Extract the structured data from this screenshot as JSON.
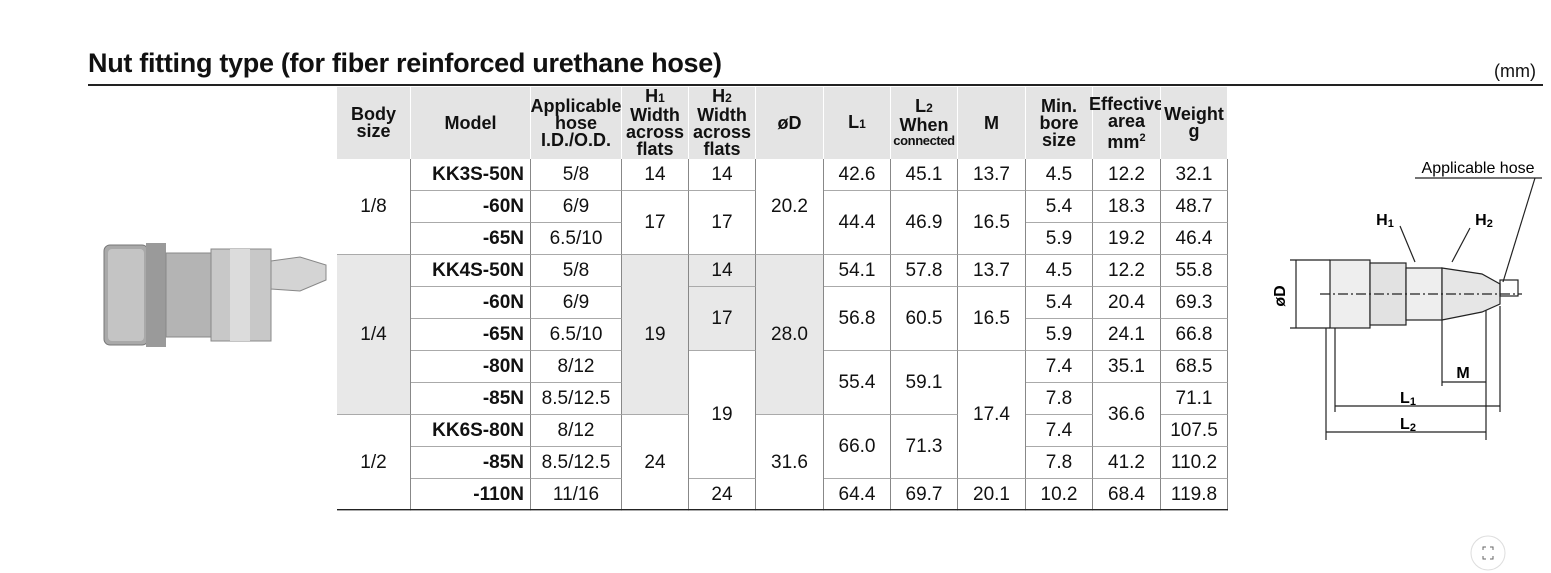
{
  "title": "Nut fitting type (for fiber reinforced urethane hose)",
  "unit": "(mm)",
  "table": {
    "header": [
      {
        "lines": [
          "Body",
          "size"
        ]
      },
      {
        "lines": [
          "Model"
        ]
      },
      {
        "lines": [
          "Applicable",
          "hose",
          "I.D./O.D."
        ]
      },
      {
        "symbol": "H",
        "index": "1",
        "lines": [
          "Width",
          "across",
          "flats"
        ]
      },
      {
        "symbol": "H",
        "index": "2",
        "lines": [
          "Width",
          "across",
          "flats"
        ]
      },
      {
        "lines": [
          "øD"
        ]
      },
      {
        "symbol": "L",
        "index": "1"
      },
      {
        "symbol": "L",
        "index": "2",
        "lines": [
          "When",
          "connected"
        ]
      },
      {
        "lines": [
          "M"
        ]
      },
      {
        "lines": [
          "Min.",
          "bore",
          "size"
        ]
      },
      {
        "lines": [
          "Effective",
          "area"
        ],
        "unit": "mm",
        "power": "2"
      },
      {
        "lines": [
          "Weight",
          "g"
        ]
      }
    ],
    "rows": [
      [
        "1/8",
        "KK3S-50N",
        "5/8",
        "14",
        "14",
        "20.2",
        "42.6",
        "45.1",
        "13.7",
        "4.5",
        "12.2",
        "32.1"
      ],
      [
        "-60N",
        "6/9",
        "17",
        "17",
        "44.4",
        "46.9",
        "16.5",
        "5.4",
        "18.3",
        "48.7"
      ],
      [
        "-65N",
        "6.5/10",
        "5.9",
        "19.2",
        "46.4"
      ],
      [
        "1/4",
        "KK4S-50N",
        "5/8",
        "19",
        "14",
        "28.0",
        "54.1",
        "57.8",
        "13.7",
        "4.5",
        "12.2",
        "55.8"
      ],
      [
        "-60N",
        "6/9",
        "17",
        "56.8",
        "60.5",
        "16.5",
        "5.4",
        "20.4",
        "69.3"
      ],
      [
        "-65N",
        "6.5/10",
        "5.9",
        "24.1",
        "66.8"
      ],
      [
        "-80N",
        "8/12",
        "19",
        "55.4",
        "59.1",
        "17.4",
        "7.4",
        "35.1",
        "68.5"
      ],
      [
        "-85N",
        "8.5/12.5",
        "7.8",
        "36.6",
        "71.1"
      ],
      [
        "1/2",
        "KK6S-80N",
        "8/12",
        "24",
        "31.6",
        "66.0",
        "71.3",
        "7.4",
        "107.5"
      ],
      [
        "-85N",
        "8.5/12.5",
        "7.8",
        "41.2",
        "110.2"
      ],
      [
        "-110N",
        "11/16",
        "24",
        "64.4",
        "69.7",
        "20.1",
        "10.2",
        "68.4",
        "119.8"
      ]
    ]
  },
  "diagram": {
    "hose_label": "Applicable hose",
    "labels": [
      {
        "symbol": "H",
        "index": "1"
      },
      {
        "symbol": "H",
        "index": "2"
      },
      {
        "symbol": "øD"
      },
      {
        "symbol": "M"
      },
      {
        "symbol": "L",
        "index": "1"
      },
      {
        "symbol": "L",
        "index": "2"
      }
    ]
  }
}
